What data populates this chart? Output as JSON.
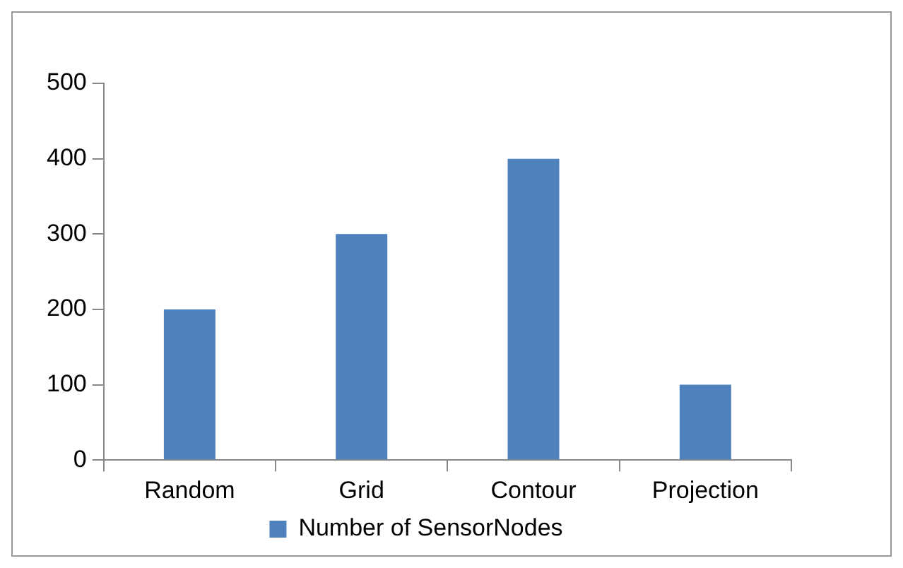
{
  "chart_data": {
    "type": "bar",
    "categories": [
      "Random",
      "Grid",
      "Contour",
      "Projection"
    ],
    "series": [
      {
        "name": "Number of SensorNodes",
        "color": "#4f81bd",
        "values": [
          200,
          300,
          400,
          100
        ]
      }
    ],
    "ylim": [
      0,
      500
    ],
    "yticks": [
      0,
      100,
      200,
      300,
      400,
      500
    ],
    "legend": "bottom"
  }
}
